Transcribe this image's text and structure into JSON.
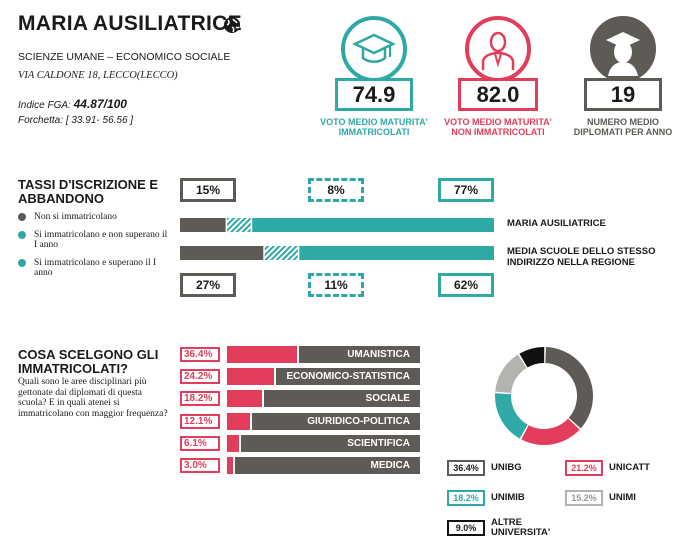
{
  "header": {
    "school_name": "MARIA AUSILIATRICE",
    "course": "SCIENZE UMANE – ECONOMICO SOCIALE",
    "address": "VIA CALDONE 18, LECCO(LECCO)",
    "fga_label": "Indice FGA:",
    "fga_value": "44.87/100",
    "range_label": "Forchetta:",
    "range_value": "[ 33.91- 56.56 ]"
  },
  "stats": [
    {
      "value": "74.9",
      "label": "VOTO MEDIO MATURITA' IMMATRICOLATI",
      "color": "#2fa9a5",
      "icon": "graduation-cap-icon"
    },
    {
      "value": "82.0",
      "label": "VOTO MEDIO MATURITA' NON IMMATRICOLATI",
      "color": "#e23d5a",
      "icon": "person-icon"
    },
    {
      "value": "19",
      "label": "NUMERO MEDIO DIPLOMATI PER ANNO",
      "color": "#5e5a55",
      "icon": "graduate-person-icon"
    }
  ],
  "enrollment": {
    "title": "TASSI D'ISCRIZIONE E ABBANDONO",
    "legend": [
      {
        "label": "Non si immatricolano",
        "color": "#5e5a55"
      },
      {
        "label": "Si immatricolano e non superano il I anno",
        "color": "#2fa9a5"
      },
      {
        "label": "Si immatricolano e superano il I anno",
        "color": "#2fa9a5"
      }
    ],
    "school_label": "MARIA AUSILIATRICE",
    "region_label": "MEDIA SCUOLE DELLO STESSO INDIRIZZO NELLA REGIONE",
    "school_pct_text": [
      "15%",
      "8%",
      "77%"
    ],
    "region_pct_text": [
      "27%",
      "11%",
      "62%"
    ]
  },
  "choices": {
    "title": "COSA SCELGONO GLI IMMATRICOLATI?",
    "question": "Quali sono le aree disciplinari più gettonate dai diplomati di questa scuola? E in quali atenei si immatricolano con maggior frequenza?",
    "universities": [
      {
        "value": "36.4%",
        "name": "UNIBG",
        "color": "#5e5a55"
      },
      {
        "value": "21.2%",
        "name": "UNICATT",
        "color": "#e23d5a"
      },
      {
        "value": "18.2%",
        "name": "UNIMIB",
        "color": "#2fa9a5"
      },
      {
        "value": "15.2%",
        "name": "UNIMI",
        "color": "#b5b3b0"
      },
      {
        "value": "9.0%",
        "name": "ALTRE UNIVERSITA'",
        "color": "#111111"
      }
    ]
  },
  "chart_data": [
    {
      "type": "bar",
      "title": "TASSI D'ISCRIZIONE E ABBANDONO",
      "stacked": true,
      "orientation": "horizontal",
      "categories": [
        "MARIA AUSILIATRICE",
        "MEDIA SCUOLE DELLO STESSO INDIRIZZO NELLA REGIONE"
      ],
      "series": [
        {
          "name": "Non si immatricolano",
          "values": [
            15,
            27
          ],
          "color": "#5e5a55"
        },
        {
          "name": "Si immatricolano e non superano il I anno",
          "values": [
            8,
            11
          ],
          "color": "#2fa9a5",
          "pattern": "hatched"
        },
        {
          "name": "Si immatricolano e superano il I anno",
          "values": [
            77,
            62
          ],
          "color": "#2fa9a5"
        }
      ]
    },
    {
      "type": "bar",
      "title": "COSA SCELGONO GLI IMMATRICOLATI?",
      "orientation": "horizontal",
      "categories": [
        "UMANISTICA",
        "ECONOMICO-STATISTICA",
        "SOCIALE",
        "GIURIDICO-POLITICA",
        "SCIENTIFICA",
        "MEDICA"
      ],
      "values": [
        36.4,
        24.2,
        18.2,
        12.1,
        6.1,
        3.0
      ],
      "value_labels": [
        "36.4%",
        "24.2%",
        "18.2%",
        "12.1%",
        "6.1%",
        "3.0%"
      ],
      "xlim": [
        0,
        100
      ]
    },
    {
      "type": "pie",
      "donut": true,
      "categories": [
        "UNIBG",
        "UNICATT",
        "UNIMIB",
        "UNIMI",
        "ALTRE UNIVERSITA'"
      ],
      "values": [
        36.4,
        21.2,
        18.2,
        15.2,
        9.0
      ],
      "colors": [
        "#5e5a55",
        "#e23d5a",
        "#2fa9a5",
        "#b5b3b0",
        "#111111"
      ]
    }
  ]
}
